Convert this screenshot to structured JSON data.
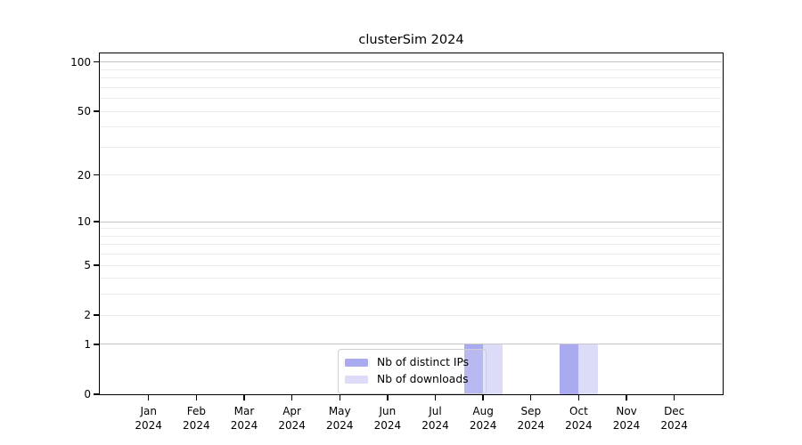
{
  "figure": {
    "title": "clusterSim 2024"
  },
  "chart_data": {
    "type": "bar",
    "title": "clusterSim 2024",
    "categories": [
      "Jan",
      "Feb",
      "Mar",
      "Apr",
      "May",
      "Jun",
      "Jul",
      "Aug",
      "Sep",
      "Oct",
      "Nov",
      "Dec"
    ],
    "x_tick_second_line": "2024",
    "series": [
      {
        "name": "Nb of distinct IPs",
        "color": "#aaaaf0",
        "values": [
          0,
          0,
          0,
          0,
          0,
          0,
          0,
          1,
          0,
          1,
          0,
          0
        ]
      },
      {
        "name": "Nb of downloads",
        "color": "#dcdcf8",
        "values": [
          0,
          0,
          0,
          0,
          0,
          0,
          0,
          1,
          0,
          1,
          0,
          0
        ]
      }
    ],
    "yscale": "log1p",
    "ylim": [
      0,
      113
    ],
    "y_tick_values": [
      0,
      1,
      2,
      5,
      10,
      20,
      50,
      100
    ],
    "y_major_gridlines": [
      1,
      10,
      100
    ],
    "y_minor_gridlines": [
      2,
      3,
      4,
      5,
      6,
      7,
      8,
      9,
      20,
      30,
      40,
      50,
      60,
      70,
      80,
      90
    ],
    "grid": true,
    "legend_position": "inside-bottom-center"
  },
  "colors": {
    "bar_distinct_ips": "#aaaaf0",
    "bar_downloads": "#dcdcf8",
    "major_grid": "#c6c6c6",
    "minor_grid": "#ececec",
    "spine": "#000000",
    "legend_border": "#cfcfcf",
    "background": "#ffffff"
  }
}
